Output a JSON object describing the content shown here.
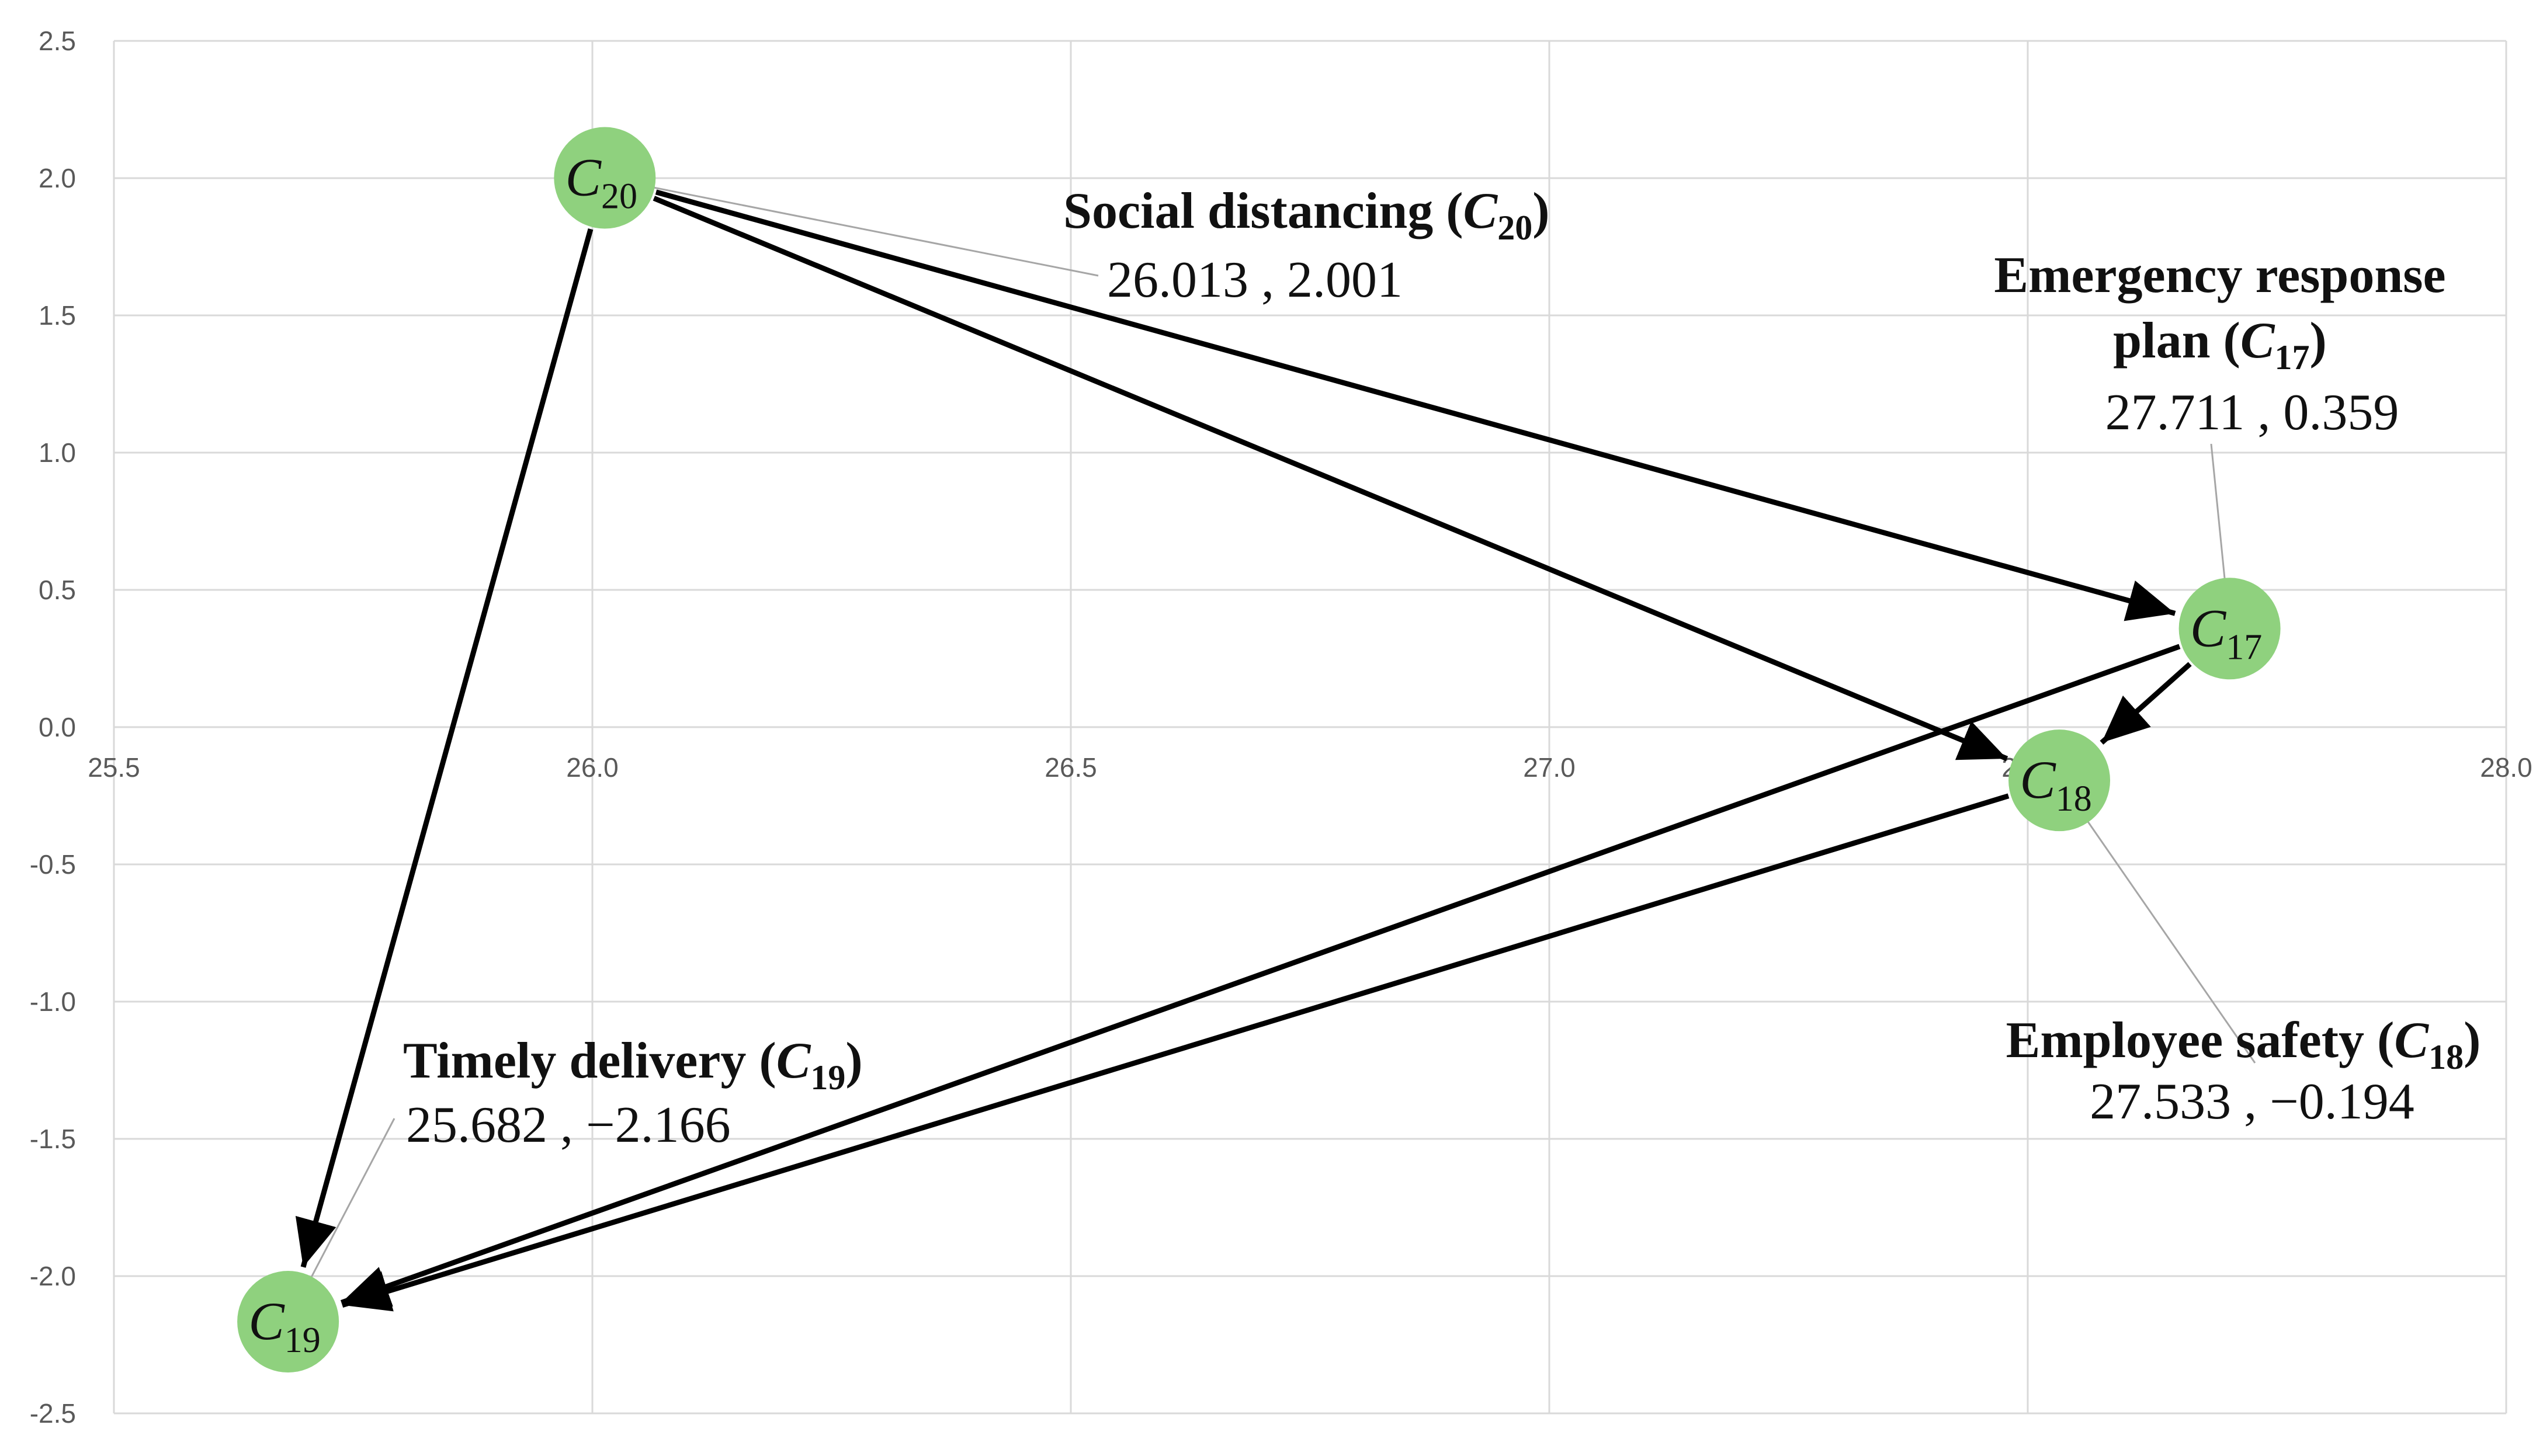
{
  "chart_data": {
    "type": "scatter",
    "title": "",
    "xlabel": "",
    "ylabel": "",
    "xlim": [
      25.5,
      28.0
    ],
    "ylim": [
      -2.5,
      2.5
    ],
    "x_ticks": [
      "25.5",
      "26.0",
      "26.5",
      "27.0",
      "27.5",
      "28.0"
    ],
    "y_ticks": [
      "2.5",
      "2.0",
      "1.5",
      "1.0",
      "0.5",
      "0.0",
      "-0.5",
      "-1.0",
      "-1.5",
      "-2.0",
      "-2.5"
    ],
    "grid": true,
    "colors": {
      "node_fill": "#8fd17e",
      "arrow": "#000000",
      "grid": "#d9d9d9",
      "leader_line": "#a6a6a6"
    },
    "points": [
      {
        "id": "C17",
        "symbol": "C",
        "subscript": "17",
        "name": "Emergency response plan",
        "title_line1": "Emergency response",
        "title_line2": "plan (",
        "value_label": "27.711 , 0.359",
        "x": 27.711,
        "y": 0.359
      },
      {
        "id": "C18",
        "symbol": "C",
        "subscript": "18",
        "name": "Employee safety",
        "title_line1": "Employee safety (",
        "title_line2": "",
        "value_label": "27.533 , −0.194",
        "x": 27.533,
        "y": -0.194
      },
      {
        "id": "C19",
        "symbol": "C",
        "subscript": "19",
        "name": "Timely delivery",
        "title_line1": "Timely delivery (",
        "title_line2": "",
        "value_label": "25.682 , −2.166",
        "x": 25.682,
        "y": -2.166
      },
      {
        "id": "C20",
        "symbol": "C",
        "subscript": "20",
        "name": "Social distancing",
        "title_line1": "Social distancing (",
        "title_line2": "",
        "value_label": "26.013 , 2.001",
        "x": 26.013,
        "y": 2.001
      }
    ],
    "edges": [
      {
        "from": "C20",
        "to": "C17"
      },
      {
        "from": "C20",
        "to": "C18"
      },
      {
        "from": "C20",
        "to": "C19"
      },
      {
        "from": "C17",
        "to": "C18"
      },
      {
        "from": "C17",
        "to": "C19"
      },
      {
        "from": "C18",
        "to": "C19"
      }
    ]
  }
}
